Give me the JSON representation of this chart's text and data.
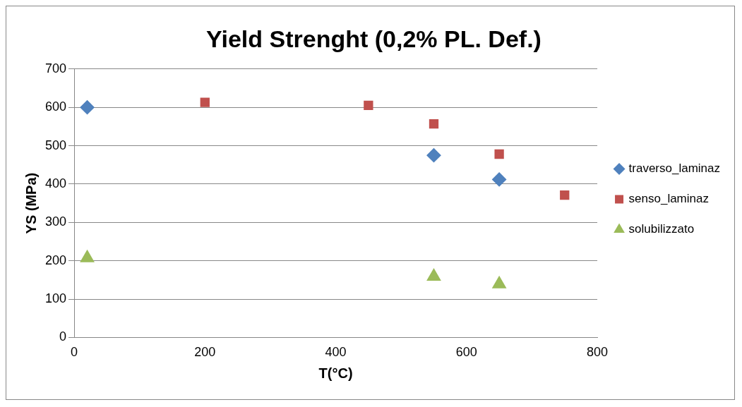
{
  "chart_data": {
    "type": "scatter",
    "title": "Yield Strenght (0,2% PL. Def.)",
    "xlabel": "T(°C)",
    "ylabel": "YS (MPa)",
    "xlim": [
      0,
      800
    ],
    "xticks": [
      0,
      200,
      400,
      600,
      800
    ],
    "ylim": [
      0,
      700
    ],
    "yticks": [
      0,
      100,
      200,
      300,
      400,
      500,
      600,
      700
    ],
    "grid": "y",
    "legend": "right",
    "series": [
      {
        "name": "traverso_laminaz",
        "color": "#4f81bd",
        "marker": "diamond",
        "x": [
          20,
          550,
          650
        ],
        "values": [
          600,
          475,
          412
        ]
      },
      {
        "name": "senso_laminaz",
        "color": "#c0504d",
        "marker": "square",
        "x": [
          200,
          450,
          550,
          650,
          750
        ],
        "values": [
          613,
          605,
          557,
          478,
          371
        ]
      },
      {
        "name": "solubilizzato",
        "color": "#9bbb59",
        "marker": "triangle",
        "x": [
          20,
          550,
          650
        ],
        "values": [
          207,
          159,
          139
        ]
      }
    ]
  }
}
